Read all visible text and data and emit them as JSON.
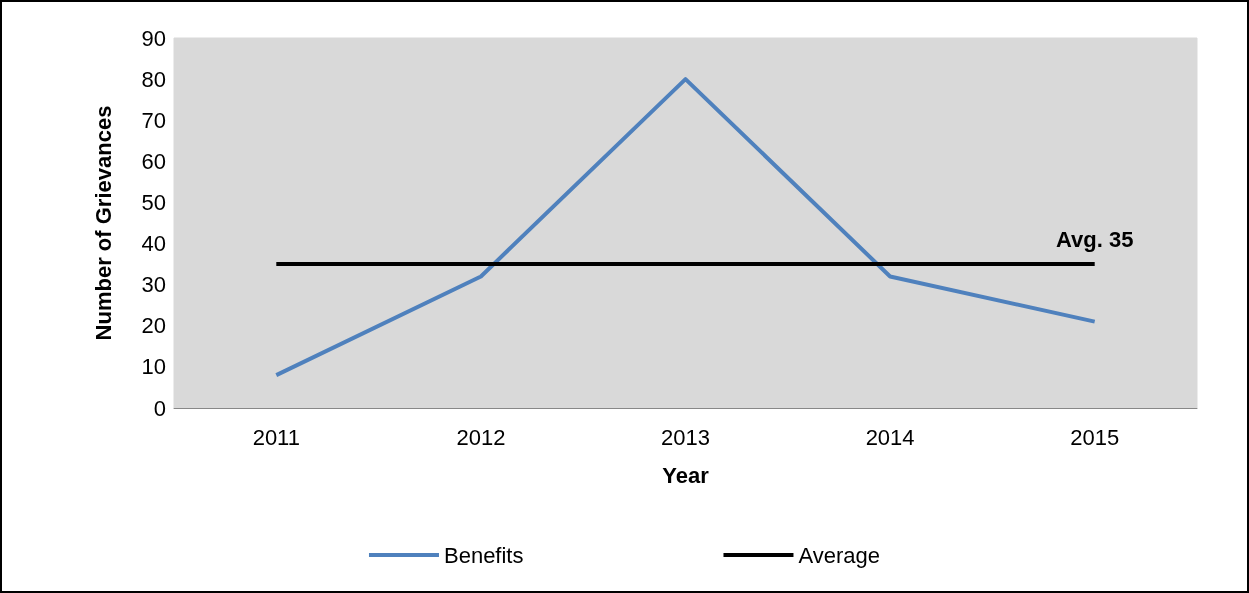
{
  "chart_data": {
    "type": "line",
    "xlabel": "Year",
    "ylabel": "Number of Grievances",
    "categories": [
      "2011",
      "2012",
      "2013",
      "2014",
      "2015"
    ],
    "series": [
      {
        "name": "Benefits",
        "color": "#4f81bd",
        "values": [
          8,
          32,
          80,
          32,
          21
        ]
      },
      {
        "name": "Average",
        "color": "#000000",
        "values": [
          35,
          35,
          35,
          35,
          35
        ]
      }
    ],
    "ylim": [
      0,
      90
    ],
    "yticks": [
      0,
      10,
      20,
      30,
      40,
      50,
      60,
      70,
      80,
      90
    ],
    "grid": false,
    "legend": "bottom",
    "marker": "none",
    "line_style": "solid",
    "annotations": [
      {
        "text": "Avg. 35",
        "x": "2015",
        "y": 35
      }
    ]
  }
}
